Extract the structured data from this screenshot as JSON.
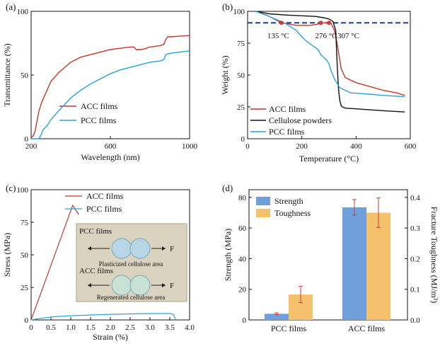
{
  "chart_data": [
    {
      "panel": "(a)",
      "type": "line",
      "xlabel": "Wavelength (nm)",
      "ylabel": "Transmittance (%)",
      "xlim": [
        200,
        1000
      ],
      "ylim": [
        0,
        100
      ],
      "xticks": [
        200,
        600,
        1000
      ],
      "yticks": [
        0,
        50,
        100
      ],
      "legend_position": "center",
      "series": [
        {
          "name": "ACC films",
          "color": "#c0392b",
          "x": [
            200,
            210,
            220,
            230,
            240,
            250,
            260,
            280,
            300,
            340,
            400,
            450,
            500,
            550,
            600,
            650,
            700,
            720,
            730,
            760,
            800,
            850,
            870,
            880,
            890,
            900,
            950,
            1000
          ],
          "y": [
            1,
            2,
            6,
            14,
            22,
            27,
            31,
            38,
            45,
            52,
            60,
            64,
            66,
            68,
            70,
            71,
            72,
            72,
            70,
            70,
            72,
            73,
            74,
            78,
            80,
            80,
            80.5,
            81
          ]
        },
        {
          "name": "PCC films",
          "color": "#29a3d9",
          "x": [
            200,
            240,
            250,
            260,
            280,
            300,
            340,
            400,
            450,
            500,
            550,
            600,
            650,
            700,
            750,
            800,
            850,
            870,
            880,
            890,
            900,
            950,
            1000
          ],
          "y": [
            0,
            0,
            3,
            7,
            10,
            15,
            22,
            32,
            38,
            43,
            47,
            51,
            54,
            56,
            58,
            60,
            61,
            62,
            66,
            66.5,
            67,
            68,
            69
          ]
        }
      ]
    },
    {
      "panel": "(b)",
      "type": "line",
      "xlabel": "Temperature (°C)",
      "ylabel": "Weight (%)",
      "xlim": [
        0,
        600
      ],
      "ylim": [
        0,
        100
      ],
      "xticks": [
        0,
        200,
        400,
        600
      ],
      "yticks": [
        0,
        25,
        50,
        75,
        100
      ],
      "reference_line": {
        "y": 91,
        "color": "#1f3c99",
        "style": "dashed"
      },
      "annotations": [
        {
          "text": "135 °C",
          "x": 125,
          "y": 91
        },
        {
          "text": "276 °C",
          "x": 270,
          "y": 91
        },
        {
          "text": "307 °C",
          "x": 300,
          "y": 91
        }
      ],
      "legend_position": "bottom-left",
      "series": [
        {
          "name": "ACC films",
          "color": "#c0392b",
          "x": [
            30,
            80,
            125,
            180,
            230,
            260,
            276,
            300,
            307,
            320,
            330,
            345,
            360,
            400,
            450,
            500,
            550,
            580
          ],
          "y": [
            100,
            96,
            91,
            89,
            89,
            90,
            91,
            91,
            91,
            85,
            75,
            55,
            48,
            44,
            41,
            38,
            36,
            34
          ]
        },
        {
          "name": "Cellulose powders",
          "color": "#111111",
          "x": [
            30,
            80,
            150,
            200,
            250,
            280,
            300,
            315,
            325,
            330,
            335,
            340,
            345,
            350,
            360,
            400,
            500,
            580
          ],
          "y": [
            100,
            98,
            97,
            96.5,
            96,
            95,
            94,
            92,
            85,
            60,
            40,
            30,
            26,
            25,
            24,
            23.5,
            22,
            21
          ]
        },
        {
          "name": "PCC films",
          "color": "#29a3d9",
          "x": [
            30,
            80,
            135,
            180,
            200,
            220,
            240,
            260,
            270,
            280,
            290,
            300,
            305,
            320,
            340,
            380,
            450,
            500,
            580
          ],
          "y": [
            100,
            96,
            91,
            85,
            80,
            76,
            73,
            70,
            66,
            64,
            62,
            59,
            55,
            47,
            40,
            36,
            35,
            34,
            33
          ]
        }
      ]
    },
    {
      "panel": "(c)",
      "type": "line",
      "xlabel": "Strain (%)",
      "ylabel": "Stress (MPa)",
      "xlim": [
        0,
        4
      ],
      "ylim": [
        0,
        100
      ],
      "xticks": [
        "0",
        "0.5",
        "1.0",
        "1.5",
        "2.0",
        "2.5",
        "3.0",
        "3.5",
        "4.0"
      ],
      "yticks": [
        0,
        25,
        50,
        75,
        100
      ],
      "legend_position": "top",
      "inset": {
        "title": "PCC films",
        "label1": "Plasticized cellulose area",
        "title2": "ACC films",
        "label2": "Regenerated cellulose area",
        "force_label": "F"
      },
      "series": [
        {
          "name": "ACC films",
          "color": "#c0392b",
          "x": [
            0,
            1.05,
            1.2
          ],
          "y": [
            0,
            88,
            81
          ]
        },
        {
          "name": "PCC  films",
          "color": "#29a3d9",
          "x": [
            0,
            0.3,
            0.6,
            1.0,
            1.5,
            2.0,
            2.5,
            3.0,
            3.5,
            3.6,
            3.65
          ],
          "y": [
            0,
            1.5,
            2.5,
            3.2,
            3.8,
            4.3,
            4.6,
            4.9,
            5.0,
            4.0,
            0
          ]
        }
      ]
    },
    {
      "panel": "(d)",
      "type": "bar",
      "categories": [
        "PCC films",
        "ACC films"
      ],
      "ylabel": "Strength (MPa)",
      "ylabel_right": "Fracture Toughness (MJ/m³)",
      "ylim": [
        0,
        85
      ],
      "ylim_right": [
        0,
        0.425
      ],
      "yticks": [
        0,
        20,
        40,
        60,
        80
      ],
      "yticks_right": [
        "0.0",
        "0.1",
        "0.2",
        "0.3",
        "0.4"
      ],
      "legend_position": "top-left",
      "series": [
        {
          "name": "Strength",
          "color": "#6fa0dc",
          "axis": "left",
          "values": [
            4,
            73.5
          ],
          "errors": [
            0.6,
            5
          ]
        },
        {
          "name": "Toughness",
          "color": "#f5c16c",
          "axis": "right",
          "values": [
            0.083,
            0.35
          ],
          "errors": [
            0.027,
            0.048
          ]
        }
      ]
    }
  ]
}
